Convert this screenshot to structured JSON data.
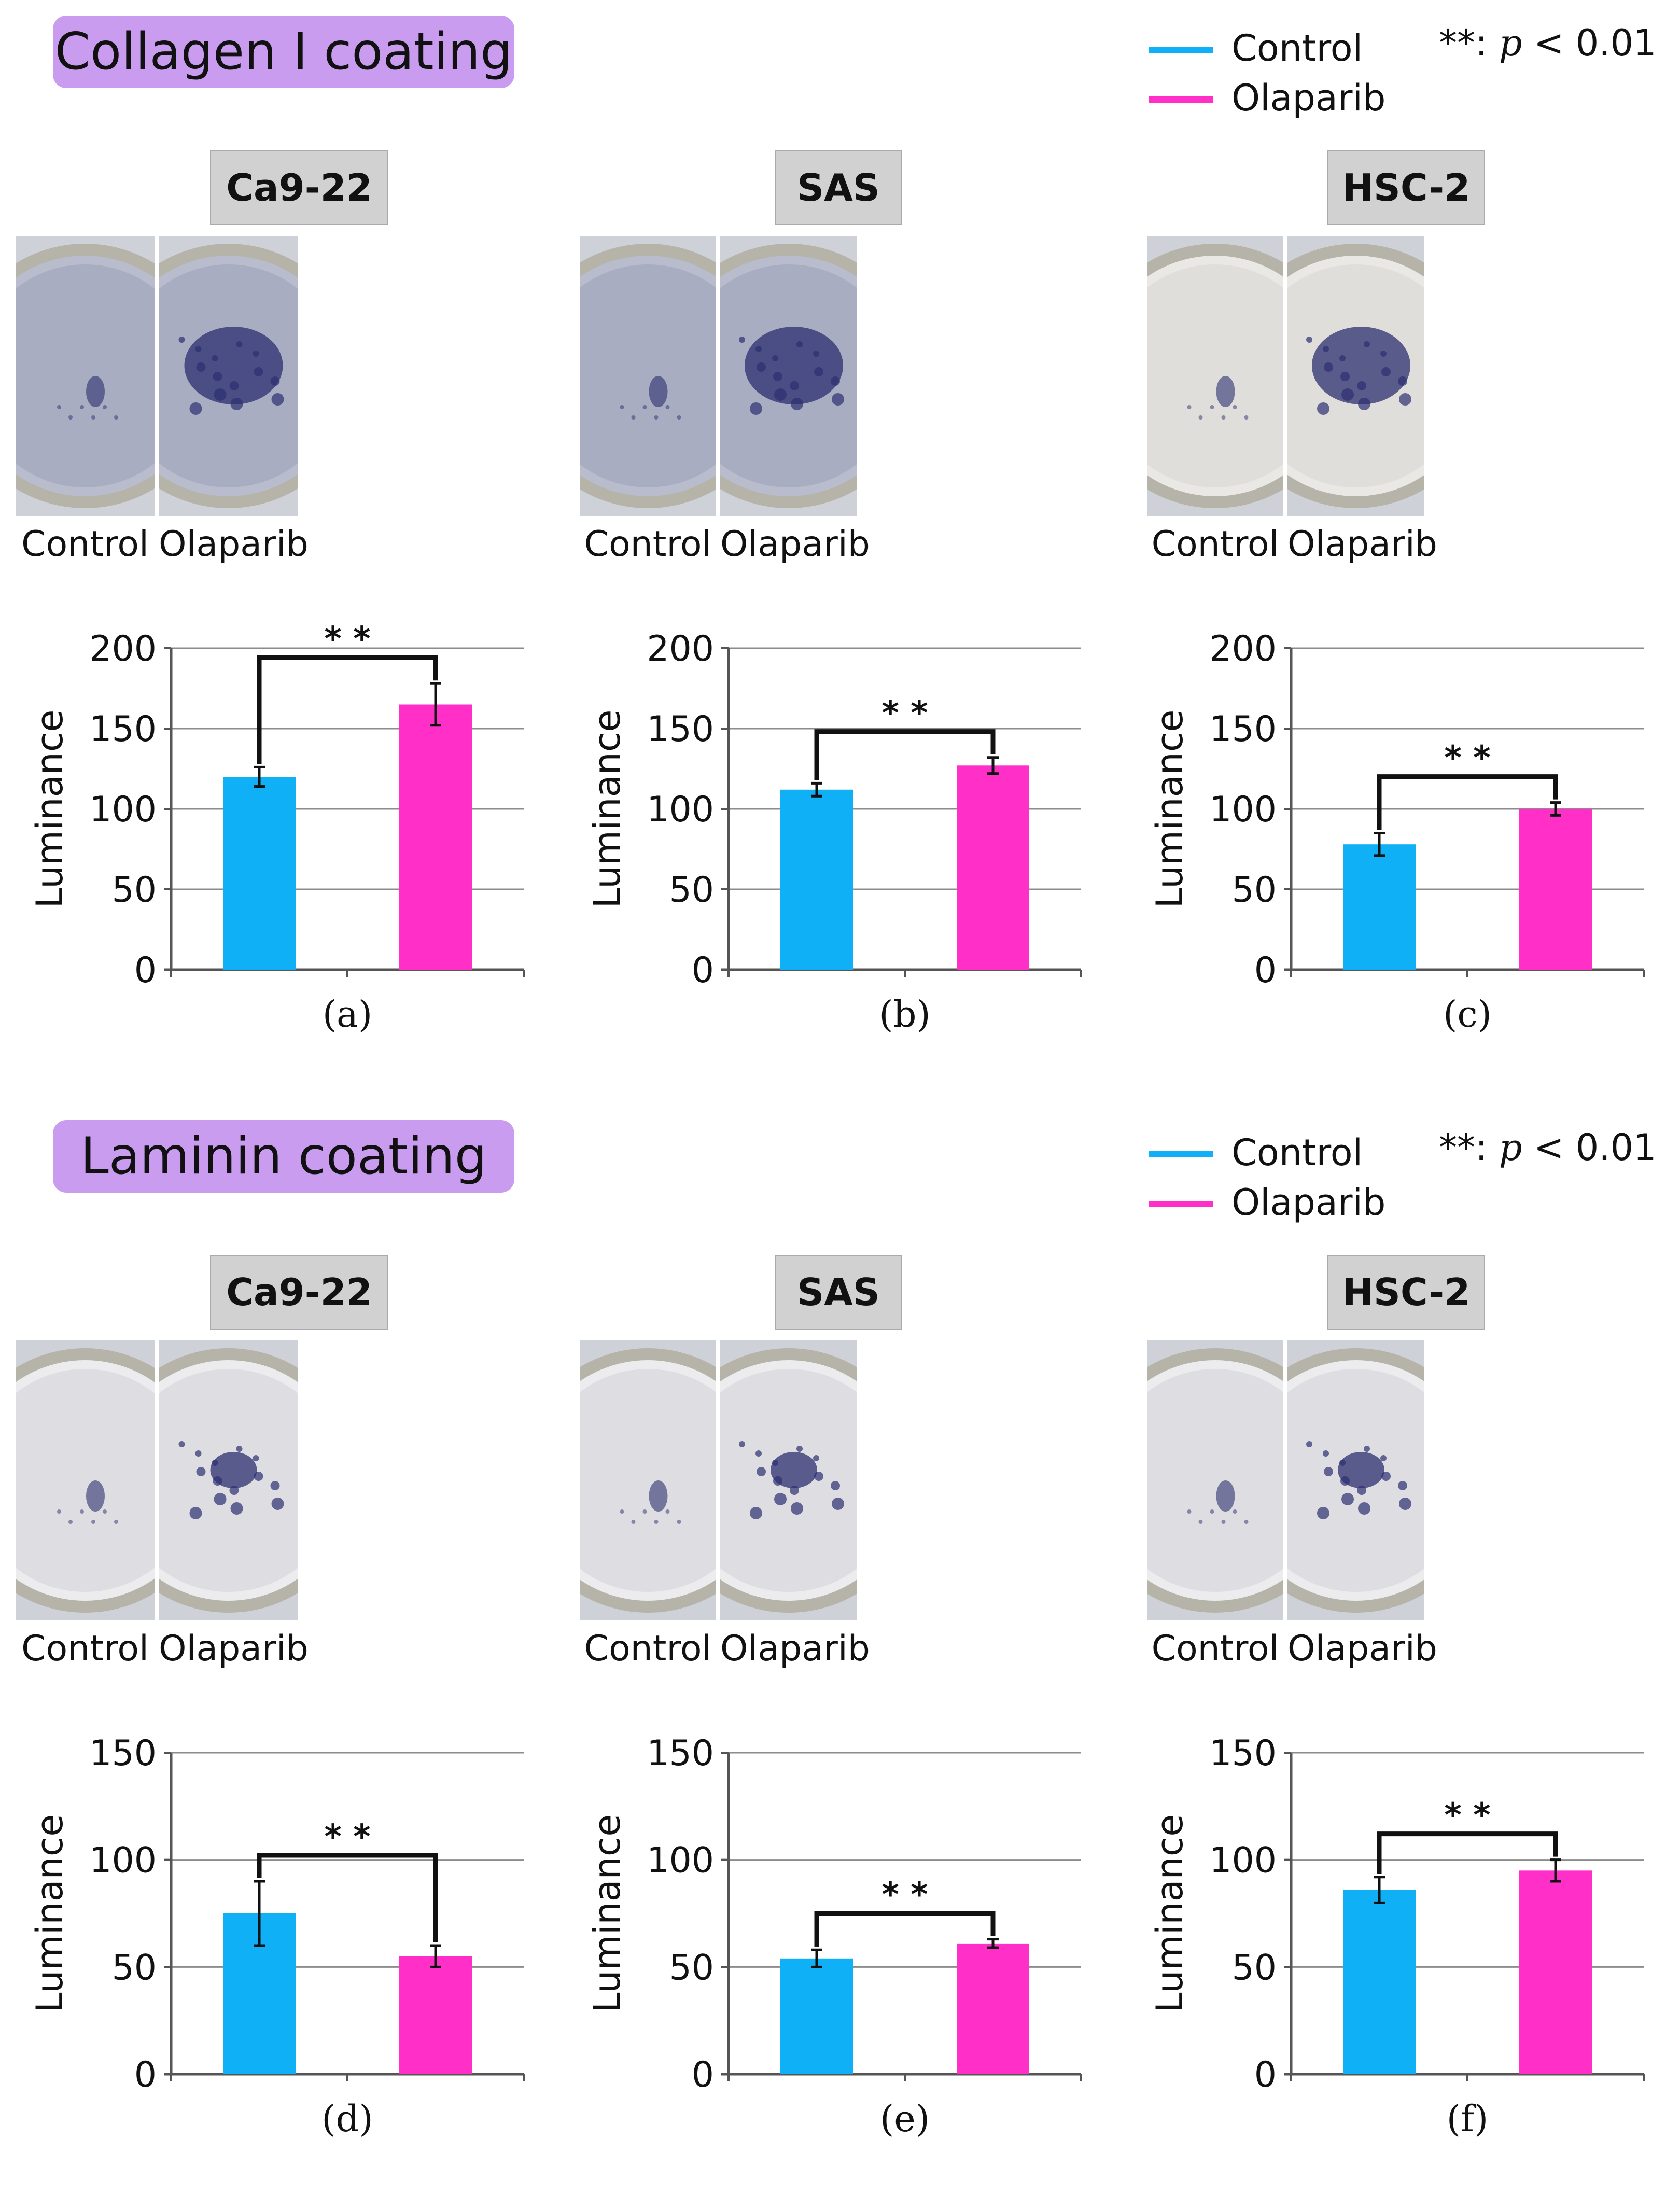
{
  "legend": {
    "control": "Control",
    "olaparib": "Olaparib"
  },
  "significance_note": {
    "stars": "**: ",
    "p": "p",
    "threshold": " < 0.01"
  },
  "colors": {
    "control": "#0fb0f5",
    "olaparib": "#ff2fc8",
    "coating_title_bg": "#c99cf0",
    "cell_label_bg": "#d1d1d1"
  },
  "sections": [
    {
      "title": "Collagen I coating",
      "panels": [
        {
          "cell_line": "Ca9-22",
          "captions": [
            "Control",
            "Olaparib"
          ],
          "panel_label": "(a)"
        },
        {
          "cell_line": "SAS",
          "captions": [
            "Control",
            "Olaparib"
          ],
          "panel_label": "(b)"
        },
        {
          "cell_line": "HSC-2",
          "captions": [
            "Control",
            "Olaparib"
          ],
          "panel_label": "(c)"
        }
      ]
    },
    {
      "title": "Laminin coating",
      "panels": [
        {
          "cell_line": "Ca9-22",
          "captions": [
            "Control",
            "Olaparib"
          ],
          "panel_label": "(d)"
        },
        {
          "cell_line": "SAS",
          "captions": [
            "Control",
            "Olaparib"
          ],
          "panel_label": "(e)"
        },
        {
          "cell_line": "HSC-2",
          "captions": [
            "Control",
            "Olaparib"
          ],
          "panel_label": "(f)"
        }
      ]
    }
  ],
  "photo_icons": [
    "well-photo-icon"
  ],
  "chart_data": [
    {
      "type": "bar",
      "panel": "(a)",
      "categories": [
        "Control",
        "Olaparib"
      ],
      "series": [
        {
          "values": [
            120,
            165
          ]
        }
      ],
      "errors": [
        6,
        13
      ],
      "ylabel": "Luminance",
      "ylim": [
        0,
        200
      ],
      "yticks": [
        0,
        50,
        100,
        150,
        200
      ],
      "significance": "* *",
      "grid": true
    },
    {
      "type": "bar",
      "panel": "(b)",
      "categories": [
        "Control",
        "Olaparib"
      ],
      "series": [
        {
          "values": [
            112,
            127
          ]
        }
      ],
      "errors": [
        4,
        5
      ],
      "ylabel": "Luminance",
      "ylim": [
        0,
        200
      ],
      "yticks": [
        0,
        50,
        100,
        150,
        200
      ],
      "significance": "* *",
      "grid": true
    },
    {
      "type": "bar",
      "panel": "(c)",
      "categories": [
        "Control",
        "Olaparib"
      ],
      "series": [
        {
          "values": [
            78,
            100
          ]
        }
      ],
      "errors": [
        7,
        4
      ],
      "ylabel": "Luminance",
      "ylim": [
        0,
        200
      ],
      "yticks": [
        0,
        50,
        100,
        150,
        200
      ],
      "significance": "* *",
      "grid": true
    },
    {
      "type": "bar",
      "panel": "(d)",
      "categories": [
        "Control",
        "Olaparib"
      ],
      "series": [
        {
          "values": [
            75,
            55
          ]
        }
      ],
      "errors": [
        15,
        5
      ],
      "ylabel": "Luminance",
      "ylim": [
        0,
        150
      ],
      "yticks": [
        0,
        50,
        100,
        150
      ],
      "significance": "* *",
      "grid": true
    },
    {
      "type": "bar",
      "panel": "(e)",
      "categories": [
        "Control",
        "Olaparib"
      ],
      "series": [
        {
          "values": [
            54,
            61
          ]
        }
      ],
      "errors": [
        4,
        2
      ],
      "ylabel": "Luminance",
      "ylim": [
        0,
        150
      ],
      "yticks": [
        0,
        50,
        100,
        150
      ],
      "significance": "* *",
      "grid": true
    },
    {
      "type": "bar",
      "panel": "(f)",
      "categories": [
        "Control",
        "Olaparib"
      ],
      "series": [
        {
          "values": [
            86,
            95
          ]
        }
      ],
      "errors": [
        6,
        5
      ],
      "ylabel": "Luminance",
      "ylim": [
        0,
        150
      ],
      "yticks": [
        0,
        50,
        100,
        150
      ],
      "significance": "* *",
      "grid": true
    }
  ]
}
